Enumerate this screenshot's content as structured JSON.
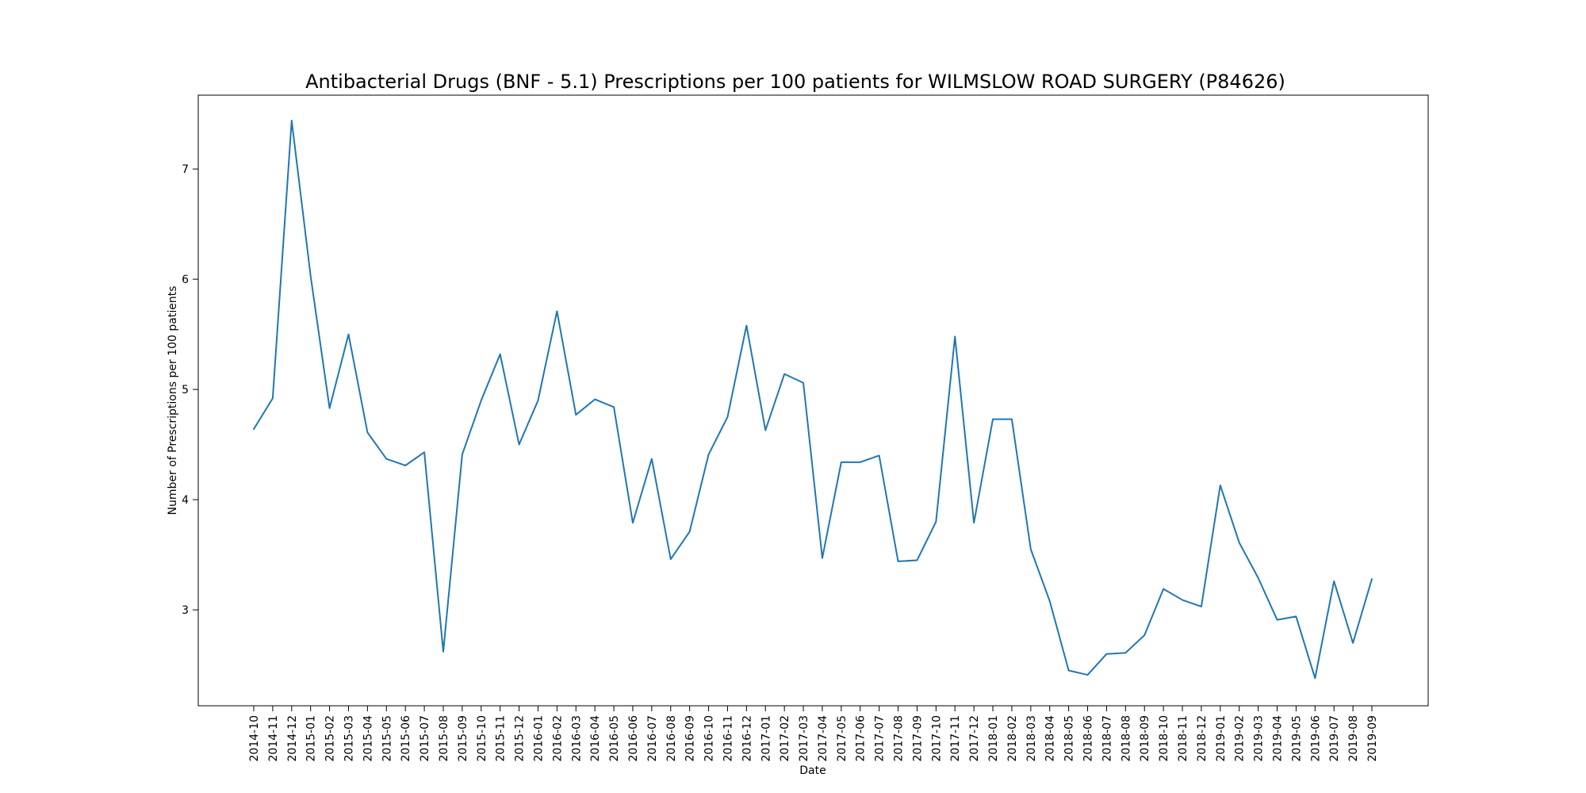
{
  "chart_data": {
    "type": "line",
    "title": "Antibacterial Drugs (BNF - 5.1) Prescriptions per 100 patients for WILMSLOW ROAD SURGERY (P84626)",
    "xlabel": "Date",
    "ylabel": "Number of Prescriptions per 100 patients",
    "ylim": [
      2.13,
      7.67
    ],
    "yticks": [
      3,
      4,
      5,
      6,
      7
    ],
    "grid": false,
    "legend": "none",
    "line_color": "#1f77b4",
    "x": [
      "2014-10",
      "2014-11",
      "2014-12",
      "2015-01",
      "2015-02",
      "2015-03",
      "2015-04",
      "2015-05",
      "2015-06",
      "2015-07",
      "2015-08",
      "2015-09",
      "2015-10",
      "2015-11",
      "2015-12",
      "2016-01",
      "2016-02",
      "2016-03",
      "2016-04",
      "2016-05",
      "2016-06",
      "2016-07",
      "2016-08",
      "2016-09",
      "2016-10",
      "2016-11",
      "2016-12",
      "2017-01",
      "2017-02",
      "2017-03",
      "2017-04",
      "2017-05",
      "2017-06",
      "2017-07",
      "2017-08",
      "2017-09",
      "2017-10",
      "2017-11",
      "2017-12",
      "2018-01",
      "2018-02",
      "2018-03",
      "2018-04",
      "2018-05",
      "2018-06",
      "2018-07",
      "2018-08",
      "2018-09",
      "2018-10",
      "2018-11",
      "2018-12",
      "2019-01",
      "2019-02",
      "2019-03",
      "2019-04",
      "2019-05",
      "2019-06",
      "2019-07",
      "2019-08",
      "2019-09"
    ],
    "series": [
      {
        "values": [
          4.64,
          4.92,
          7.44,
          6.03,
          4.83,
          5.5,
          4.61,
          4.37,
          4.31,
          4.43,
          2.62,
          4.41,
          4.9,
          5.32,
          4.5,
          4.9,
          5.71,
          4.77,
          4.91,
          4.84,
          3.79,
          4.37,
          3.46,
          3.71,
          4.41,
          4.75,
          5.58,
          4.63,
          5.14,
          5.06,
          3.47,
          4.34,
          4.34,
          4.4,
          3.44,
          3.45,
          3.8,
          5.48,
          3.79,
          4.73,
          4.73,
          3.55,
          3.08,
          2.45,
          2.41,
          2.6,
          2.61,
          2.77,
          3.19,
          3.09,
          3.03,
          4.13,
          3.61,
          3.29,
          2.91,
          2.94,
          2.38,
          3.26,
          2.7,
          3.28
        ]
      }
    ]
  }
}
